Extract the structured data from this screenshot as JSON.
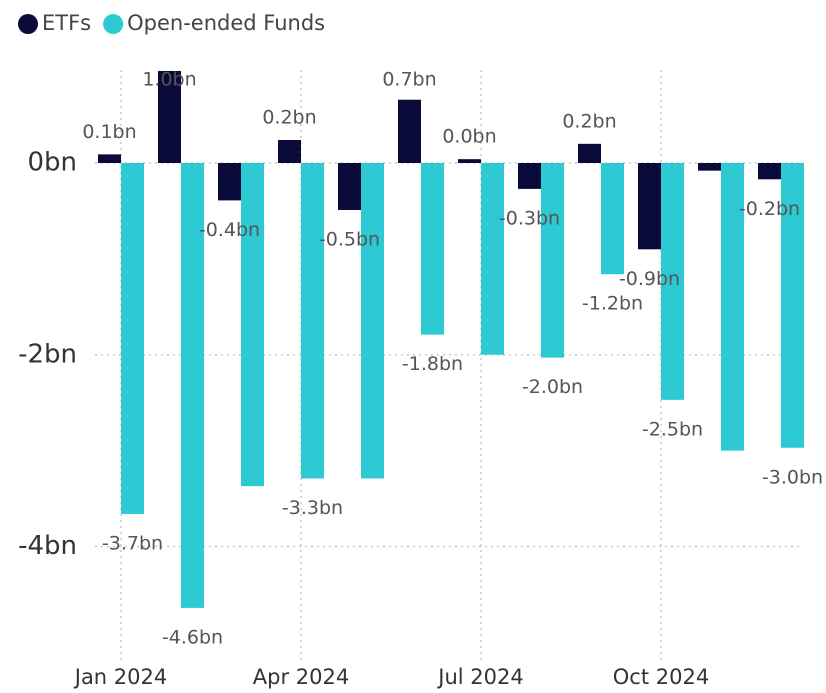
{
  "chart_data": {
    "type": "bar",
    "categories": [
      "Jan 2024",
      null,
      null,
      "Apr 2024",
      null,
      null,
      "Jul 2024",
      null,
      null,
      "Oct 2024",
      null,
      null
    ],
    "series": [
      {
        "name": "ETFs",
        "color": "#0b0b3b",
        "values": [
          0.09,
          0.96,
          -0.39,
          0.24,
          -0.49,
          0.66,
          0.04,
          -0.27,
          0.2,
          -0.9,
          -0.08,
          -0.17
        ],
        "value_labels": [
          "0.1bn",
          "1.0bn",
          "-0.4bn",
          "0.2bn",
          "-0.5bn",
          "0.7bn",
          "0.0bn",
          "-0.3bn",
          "0.2bn",
          "-0.9bn",
          null,
          "-0.2bn"
        ]
      },
      {
        "name": "Open-ended Funds",
        "color": "#2ecad3",
        "values": [
          -3.66,
          -4.64,
          -3.37,
          -3.29,
          -3.29,
          -1.79,
          -2.0,
          -2.03,
          -1.16,
          -2.47,
          -3.0,
          -2.97
        ],
        "value_labels": [
          "-3.7bn",
          "-4.6bn",
          null,
          "-3.3bn",
          null,
          "-1.8bn",
          null,
          "-2.0bn",
          "-1.2bn",
          "-2.5bn",
          null,
          "-3.0bn"
        ]
      }
    ],
    "ylim": [
      -5.1,
      0.97
    ],
    "yticks": [
      {
        "value": 0,
        "label": "0bn"
      },
      {
        "value": -2,
        "label": "-2bn"
      },
      {
        "value": -4,
        "label": "-4bn"
      }
    ],
    "grid": true,
    "legend": "top-left"
  }
}
